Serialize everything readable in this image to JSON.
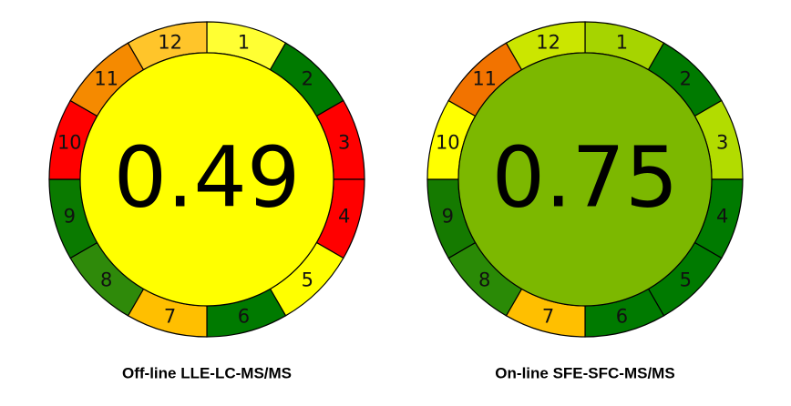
{
  "diagrams": [
    {
      "score": 0.49,
      "center_color": "#ffff00",
      "caption": "Off-line  LLE-LC-MS/MS",
      "segments": [
        {
          "label": "1",
          "color": "#ffff33"
        },
        {
          "label": "2",
          "color": "#007a00"
        },
        {
          "label": "3",
          "color": "#ff0000"
        },
        {
          "label": "4",
          "color": "#ff0000"
        },
        {
          "label": "5",
          "color": "#ffff00"
        },
        {
          "label": "6",
          "color": "#007a00"
        },
        {
          "label": "7",
          "color": "#ffbf00"
        },
        {
          "label": "8",
          "color": "#2f8a0a"
        },
        {
          "label": "9",
          "color": "#0a7a00"
        },
        {
          "label": "10",
          "color": "#ff0000"
        },
        {
          "label": "11",
          "color": "#f58a00"
        },
        {
          "label": "12",
          "color": "#ffc52a"
        }
      ]
    },
    {
      "score": 0.75,
      "center_color": "#7cb800",
      "caption": "On-line  SFE-SFC-MS/MS",
      "segments": [
        {
          "label": "1",
          "color": "#a6d400"
        },
        {
          "label": "2",
          "color": "#007a00"
        },
        {
          "label": "3",
          "color": "#b2dc00"
        },
        {
          "label": "4",
          "color": "#007a00"
        },
        {
          "label": "5",
          "color": "#007a00"
        },
        {
          "label": "6",
          "color": "#007a00"
        },
        {
          "label": "7",
          "color": "#ffbf00"
        },
        {
          "label": "8",
          "color": "#2a8a06"
        },
        {
          "label": "9",
          "color": "#157a00"
        },
        {
          "label": "10",
          "color": "#ffff00"
        },
        {
          "label": "11",
          "color": "#f27300"
        },
        {
          "label": "12",
          "color": "#cbe600"
        }
      ]
    }
  ]
}
